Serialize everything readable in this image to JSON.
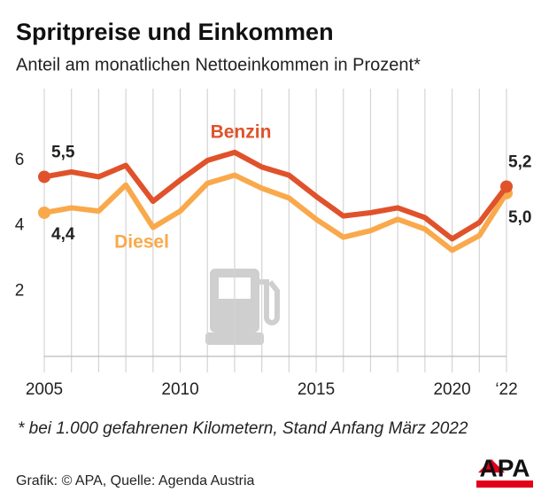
{
  "chart_data": {
    "type": "line",
    "title": "Spritpreise und Einkommen",
    "subtitle": "Anteil am monatlichen Nettoeinkommen in Prozent*",
    "x": [
      2005,
      2006,
      2007,
      2008,
      2009,
      2010,
      2011,
      2012,
      2013,
      2014,
      2015,
      2016,
      2017,
      2018,
      2019,
      2020,
      2021,
      2022
    ],
    "series": [
      {
        "name": "Benzin",
        "color": "#e0522b",
        "values": [
          5.5,
          5.65,
          5.5,
          5.85,
          4.75,
          5.4,
          6.0,
          6.25,
          5.8,
          5.55,
          4.9,
          4.3,
          4.4,
          4.55,
          4.25,
          3.6,
          4.1,
          5.2
        ],
        "value_labels": [
          "5,5",
          null,
          null,
          null,
          null,
          null,
          null,
          null,
          null,
          null,
          null,
          null,
          null,
          null,
          null,
          null,
          null,
          "5,2"
        ]
      },
      {
        "name": "Diesel",
        "color": "#f9a94b",
        "values": [
          4.4,
          4.55,
          4.45,
          5.25,
          3.95,
          4.45,
          5.3,
          5.55,
          5.15,
          4.85,
          4.2,
          3.65,
          3.85,
          4.2,
          3.9,
          3.25,
          3.7,
          5.0
        ],
        "value_labels": [
          "4,4",
          null,
          null,
          null,
          null,
          null,
          null,
          null,
          null,
          null,
          null,
          null,
          null,
          null,
          null,
          null,
          null,
          "5,0"
        ]
      }
    ],
    "xlim": [
      2005,
      2022
    ],
    "xticks": [
      2005,
      2010,
      2015,
      2020,
      {
        "value": 2022,
        "label": "‘22"
      }
    ],
    "ylim": [
      0,
      8.2
    ],
    "yticks": [
      2,
      4,
      6
    ],
    "grid": true,
    "footnote": "* bei 1.000 gefahrenen Kilometern, Stand Anfang März 2022",
    "source": "Grafik: © APA, Quelle: Agenda Austria",
    "logo": "APA"
  }
}
